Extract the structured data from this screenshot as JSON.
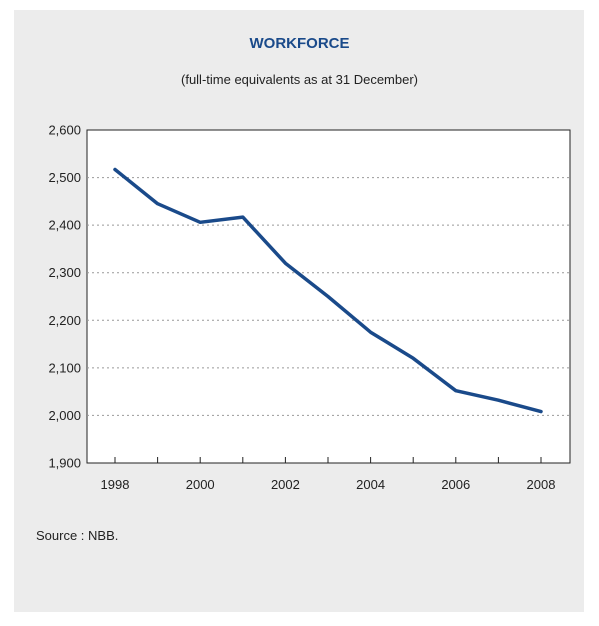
{
  "title": "WORKFORCE",
  "subtitle": "(full-time equivalents as at 31 December)",
  "source": "Source : NBB.",
  "colors": {
    "title": "#1a4a8a",
    "line": "#1a4a8a",
    "panel": "#ececec"
  },
  "chart_data": {
    "type": "line",
    "title": "WORKFORCE",
    "subtitle": "(full-time equivalents as at 31 December)",
    "xlabel": "",
    "ylabel": "",
    "x": [
      1998,
      1999,
      2000,
      2001,
      2002,
      2003,
      2004,
      2005,
      2006,
      2007,
      2008
    ],
    "x_tick_labels": [
      "1998",
      "2000",
      "2002",
      "2004",
      "2006",
      "2008"
    ],
    "y_tick_labels": [
      "1,900",
      "2,000",
      "2,100",
      "2,200",
      "2,300",
      "2,400",
      "2,500",
      "2,600"
    ],
    "ylim": [
      1900,
      2600
    ],
    "grid": "horizontal dotted",
    "series": [
      {
        "values": [
          2517,
          2445,
          2406,
          2417,
          2320,
          2250,
          2175,
          2120,
          2052,
          2032,
          2008
        ]
      }
    ]
  }
}
